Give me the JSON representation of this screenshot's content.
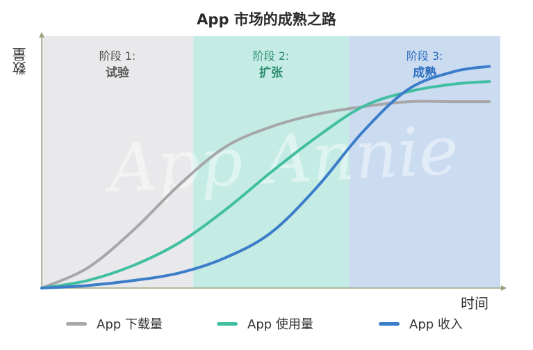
{
  "chart_data": {
    "type": "line",
    "title": "App 市场的成熟之路",
    "xlabel": "时间",
    "ylabel": "数量",
    "xlim": [
      0,
      100
    ],
    "ylim": [
      0,
      100
    ],
    "grid": false,
    "legend_position": "bottom",
    "stages": [
      {
        "name": "阶段 1:",
        "title": "试验",
        "start": 0,
        "end": 33,
        "color": "#e9e9ec",
        "label_color": "#555555"
      },
      {
        "name": "阶段 2:",
        "title": "扩张",
        "start": 33,
        "end": 67,
        "color": "#c4ece4",
        "label_color": "#2e8b70"
      },
      {
        "name": "阶段 3:",
        "title": "成熟",
        "start": 67,
        "end": 100,
        "color": "#cbdcf1",
        "label_color": "#2f6fc0"
      }
    ],
    "series": [
      {
        "name": "App 下载量",
        "color": "#a7a7a9",
        "x": [
          0,
          10,
          20,
          30,
          40,
          50,
          60,
          70,
          80,
          90,
          97.6
        ],
        "y": [
          0,
          8,
          23,
          41,
          56,
          64,
          69,
          72,
          74,
          74,
          74
        ]
      },
      {
        "name": "App 使用量",
        "color": "#41bfa0",
        "x": [
          0,
          10,
          20,
          30,
          40,
          50,
          60,
          70,
          80,
          90,
          97.6
        ],
        "y": [
          0,
          3,
          9,
          18,
          31,
          46,
          60,
          72,
          78,
          81,
          82
        ]
      },
      {
        "name": "App 收入",
        "color": "#3b7dc9",
        "x": [
          0,
          10,
          20,
          30,
          40,
          50,
          60,
          70,
          80,
          90,
          97.6
        ],
        "y": [
          0,
          1,
          3,
          6,
          12,
          22,
          40,
          62,
          79,
          86,
          88
        ]
      }
    ]
  },
  "watermark": "App Annie",
  "colors": {
    "axis": "#9aa27c",
    "title": "#2b2b2b"
  }
}
